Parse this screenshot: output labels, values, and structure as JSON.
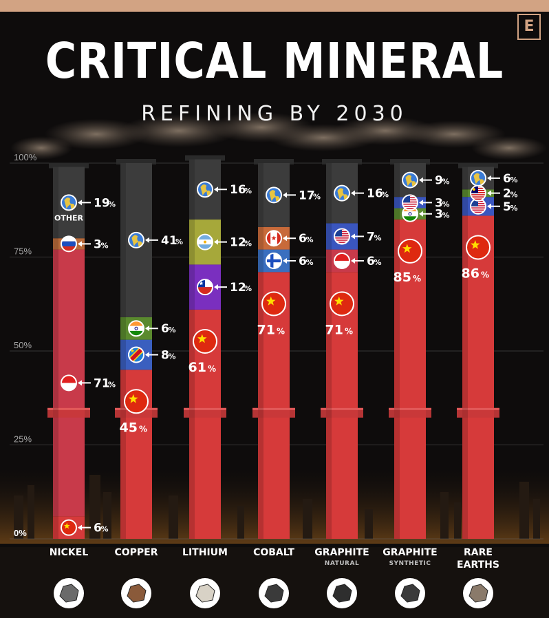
{
  "header": {
    "logo": "E",
    "title": "CRITICAL MINERAL",
    "subtitle": "REFINING BY 2030"
  },
  "colors": {
    "china": "#d63a3a",
    "other": "#3c3c3c",
    "russia": "#b86a3a",
    "india": "#5a8a2e",
    "drc": "#3a5fbf",
    "argentina": "#a6a83a",
    "chile": "#7a2fbf",
    "canada": "#c86a3a",
    "finland": "#3a6fbf",
    "usa": "#3a56bf",
    "indonesia": "#c83a4a",
    "malaysia": "#5a8a2e"
  },
  "chart_data": {
    "type": "bar",
    "stacked": true,
    "title": "CRITICAL MINERAL",
    "subtitle": "REFINING BY 2030",
    "ylim": [
      0,
      100
    ],
    "yticks": [
      "0%",
      "25%",
      "50%",
      "75%",
      "100%"
    ],
    "categories": [
      {
        "label": "NICKEL",
        "sublabel": ""
      },
      {
        "label": "COPPER",
        "sublabel": ""
      },
      {
        "label": "LITHIUM",
        "sublabel": ""
      },
      {
        "label": "COBALT",
        "sublabel": ""
      },
      {
        "label": "GRAPHITE",
        "sublabel": "NATURAL"
      },
      {
        "label": "GRAPHITE",
        "sublabel": "SYNTHETIC"
      },
      {
        "label": "RARE",
        "sublabel": "EARTHS"
      }
    ],
    "bars": [
      {
        "segments": [
          {
            "country": "China",
            "value": 6,
            "flag": "china"
          },
          {
            "country": "Indonesia",
            "value": 71,
            "flag": "indonesia"
          },
          {
            "country": "Russia",
            "value": 3,
            "flag": "russia"
          },
          {
            "country": "Other",
            "value": 19,
            "flag": "other",
            "note": "OTHER"
          }
        ]
      },
      {
        "segments": [
          {
            "country": "China",
            "value": 45,
            "flag": "china"
          },
          {
            "country": "DRC",
            "value": 8,
            "flag": "drc"
          },
          {
            "country": "India",
            "value": 6,
            "flag": "india"
          },
          {
            "country": "Other",
            "value": 41,
            "flag": "other"
          }
        ]
      },
      {
        "segments": [
          {
            "country": "China",
            "value": 61,
            "flag": "china"
          },
          {
            "country": "Chile",
            "value": 12,
            "flag": "chile"
          },
          {
            "country": "Argentina",
            "value": 12,
            "flag": "argentina"
          },
          {
            "country": "Other",
            "value": 16,
            "flag": "other"
          }
        ]
      },
      {
        "segments": [
          {
            "country": "China",
            "value": 71,
            "flag": "china"
          },
          {
            "country": "Finland",
            "value": 6,
            "flag": "finland"
          },
          {
            "country": "Canada",
            "value": 6,
            "flag": "canada"
          },
          {
            "country": "Other",
            "value": 17,
            "flag": "other"
          }
        ]
      },
      {
        "segments": [
          {
            "country": "China",
            "value": 71,
            "flag": "china"
          },
          {
            "country": "Indonesia",
            "value": 6,
            "flag": "indonesia"
          },
          {
            "country": "USA",
            "value": 7,
            "flag": "usa"
          },
          {
            "country": "Other",
            "value": 16,
            "flag": "other"
          }
        ]
      },
      {
        "segments": [
          {
            "country": "China",
            "value": 85,
            "flag": "china"
          },
          {
            "country": "India",
            "value": 3,
            "flag": "india"
          },
          {
            "country": "USA",
            "value": 3,
            "flag": "usa"
          },
          {
            "country": "Other",
            "value": 9,
            "flag": "other"
          }
        ]
      },
      {
        "segments": [
          {
            "country": "China",
            "value": 86,
            "flag": "china"
          },
          {
            "country": "USA",
            "value": 5,
            "flag": "usa"
          },
          {
            "country": "Malaysia",
            "value": 2,
            "flag": "malaysia"
          },
          {
            "country": "Other",
            "value": 6,
            "flag": "other"
          }
        ]
      }
    ]
  }
}
